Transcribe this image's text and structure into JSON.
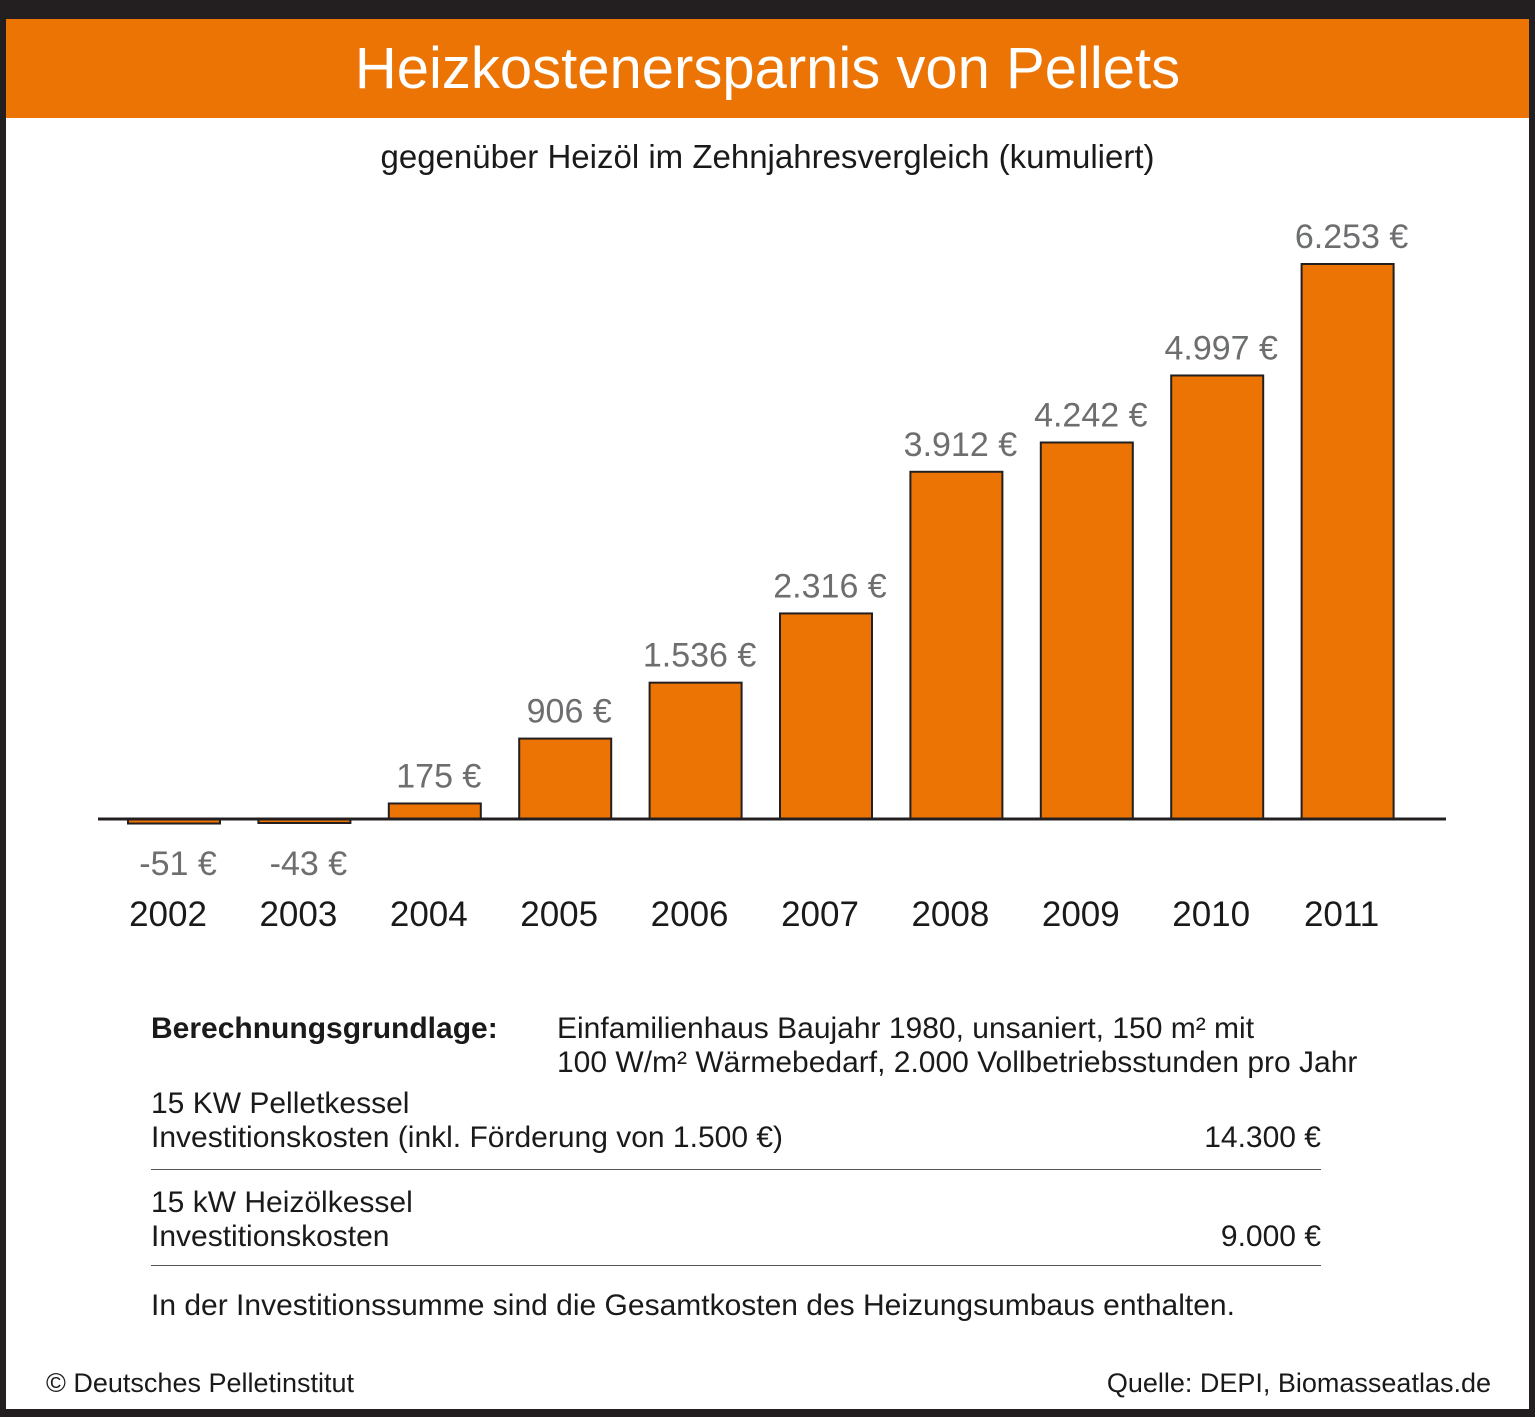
{
  "title": "Heizkostenersparnis von Pellets",
  "subtitle": "gegenüber Heizöl im Zehnjahresvergleich (kumuliert)",
  "chart_data": {
    "type": "bar",
    "categories": [
      "2002",
      "2003",
      "2004",
      "2005",
      "2006",
      "2007",
      "2008",
      "2009",
      "2010",
      "2011"
    ],
    "values": [
      -51,
      -43,
      175,
      906,
      1536,
      2316,
      3912,
      4242,
      4997,
      6253
    ],
    "value_labels": [
      "-51 €",
      "-43 €",
      "175 €",
      "906 €",
      "1.536 €",
      "2.316 €",
      "3.912 €",
      "4.242 €",
      "4.997 €",
      "6.253 €"
    ],
    "unit": "€",
    "title": "Heizkostenersparnis von Pellets",
    "subtitle": "gegenüber Heizöl im Zehnjahresvergleich (kumuliert)",
    "xlabel": "",
    "ylabel": "",
    "ylim": [
      -51,
      6253
    ],
    "grid": false,
    "legend": "none",
    "colors": {
      "bar": "#ec7404",
      "bar_outline": "#231f20",
      "value_label": "#6d6e70",
      "axis": "#231f20",
      "tick_label": "#1a1a1a"
    }
  },
  "basis": {
    "label": "Berechnungsgrundlage:",
    "line1": "Einfamilienhaus Baujahr 1980, unsaniert, 150 m² mit",
    "line2": "100 W/m² Wärmebedarf, 2.000 Vollbetriebsstunden pro Jahr"
  },
  "pellet": {
    "line1": "15 KW Pelletkessel",
    "line2": "Investitionskosten (inkl. Förderung von 1.500 €)",
    "value": "14.300 €"
  },
  "oil": {
    "line1": "15 kW Heizölkessel",
    "line2": "Investitionskosten",
    "value": "9.000 €"
  },
  "note": "In der Investitionssumme sind die Gesamtkosten des Heizungsumbaus enthalten.",
  "footer": {
    "left": "© Deutsches Pelletinstitut",
    "right": "Quelle: DEPI, Biomasseatlas.de"
  },
  "theme": {
    "frame": "#231f20",
    "accent": "#ec7404",
    "background": "#ffffff"
  }
}
